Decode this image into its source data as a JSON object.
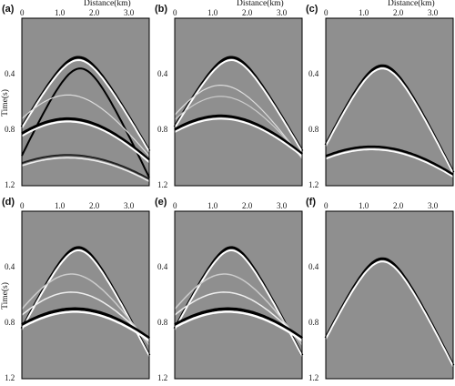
{
  "axis": {
    "x_title": "Distance(km)",
    "y_title": "Time(s)",
    "x_ticks": [
      "0",
      "1.0",
      "2.0",
      "3.0"
    ],
    "y_ticks": [
      "0.4",
      "0.8",
      "1.2"
    ]
  },
  "colors": {
    "background": "#8f8f8f",
    "axis": "#000000"
  },
  "panels": [
    {
      "label": "(a)"
    },
    {
      "label": "(b)"
    },
    {
      "label": "(c)"
    },
    {
      "label": "(d)"
    },
    {
      "label": "(e)"
    },
    {
      "label": "(f)"
    }
  ]
}
